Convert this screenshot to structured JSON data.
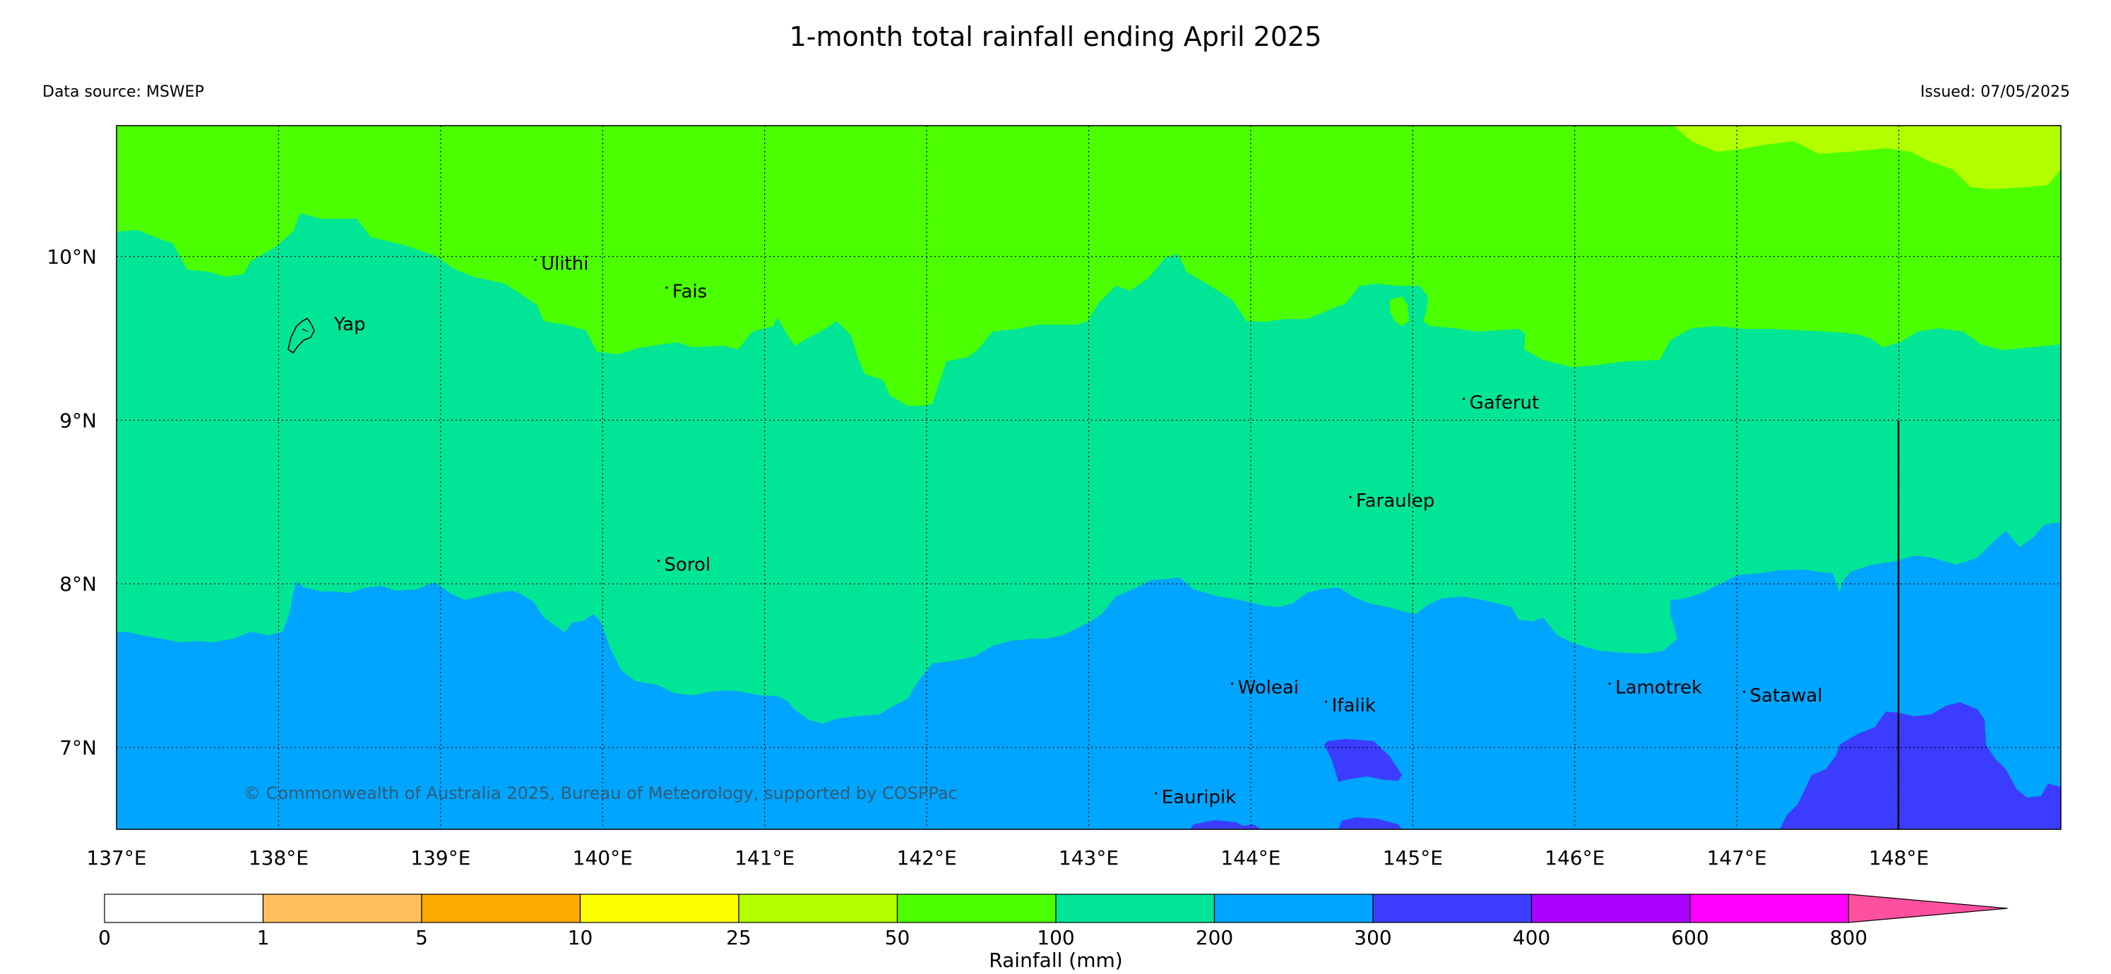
{
  "title": "1-month total rainfall ending April 2025",
  "data_source": "Data source: MSWEP",
  "issued": "Issued: 07/05/2025",
  "copyright": "© Commonwealth of Australia 2025, Bureau of Meteorology, supported by COSPPac",
  "map": {
    "lon_range": [
      137,
      149
    ],
    "lat_range": [
      6.5,
      10.8
    ],
    "lon_ticks": [
      {
        "value": 137,
        "label": "137°E"
      },
      {
        "value": 138,
        "label": "138°E"
      },
      {
        "value": 139,
        "label": "139°E"
      },
      {
        "value": 140,
        "label": "140°E"
      },
      {
        "value": 141,
        "label": "141°E"
      },
      {
        "value": 142,
        "label": "142°E"
      },
      {
        "value": 143,
        "label": "143°E"
      },
      {
        "value": 144,
        "label": "144°E"
      },
      {
        "value": 145,
        "label": "145°E"
      },
      {
        "value": 146,
        "label": "146°E"
      },
      {
        "value": 147,
        "label": "147°E"
      },
      {
        "value": 148,
        "label": "148°E"
      }
    ],
    "lat_ticks": [
      {
        "value": 10,
        "label": "10°N"
      },
      {
        "value": 9,
        "label": "9°N"
      },
      {
        "value": 8,
        "label": "8°N"
      },
      {
        "value": 7,
        "label": "7°N"
      }
    ],
    "islands": [
      {
        "name": "Yap",
        "lon": 138.22,
        "lat": 9.55
      },
      {
        "name": "Ulithi",
        "lon": 139.62,
        "lat": 9.92
      },
      {
        "name": "Fais",
        "lon": 140.43,
        "lat": 9.75
      },
      {
        "name": "Gaferut",
        "lon": 145.35,
        "lat": 9.07
      },
      {
        "name": "Faraulep",
        "lon": 144.65,
        "lat": 8.47
      },
      {
        "name": "Sorol",
        "lon": 140.38,
        "lat": 8.08
      },
      {
        "name": "Woleai",
        "lon": 143.92,
        "lat": 7.33
      },
      {
        "name": "Ifalik",
        "lon": 144.5,
        "lat": 7.22
      },
      {
        "name": "Lamotrek",
        "lon": 146.25,
        "lat": 7.33
      },
      {
        "name": "Satawal",
        "lon": 147.08,
        "lat": 7.28
      },
      {
        "name": "Eauripik",
        "lon": 143.45,
        "lat": 6.66
      }
    ],
    "colors": {
      "c100_200": "#00e696",
      "c50_100": "#4bff00",
      "c25_50": "#b2ff00",
      "c200_300": "#00a5ff",
      "c300_400": "#3c3cff"
    }
  },
  "colorbar": {
    "label": "Rainfall (mm)",
    "ticks": [
      "0",
      "1",
      "5",
      "10",
      "25",
      "50",
      "100",
      "200",
      "300",
      "400",
      "600",
      "800"
    ],
    "colors": [
      "#ffffff",
      "#ffbe5a",
      "#ffaa00",
      "#ffff00",
      "#b2ff00",
      "#4bff00",
      "#00e696",
      "#00a5ff",
      "#3c3cff",
      "#aa00ff",
      "#ff00ff",
      "#ff50a0"
    ]
  }
}
